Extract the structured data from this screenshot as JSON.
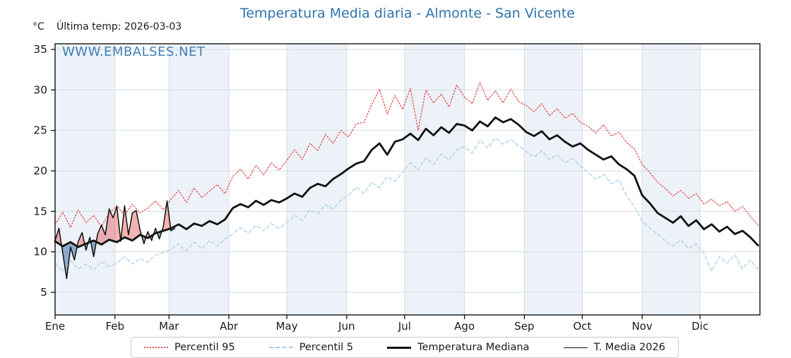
{
  "header": {
    "title": "Temperatura Media diaria - Almonte - San Vicente",
    "unit": "°C",
    "last_temp": "Última temp: 2026-03-03",
    "watermark": "WWW.EMBALSES.NET"
  },
  "chart_data": {
    "type": "line",
    "title": "Temperatura Media diaria - Almonte - San Vicente",
    "xlabel": "",
    "ylabel": "°C",
    "ylim": [
      2.2,
      35.7
    ],
    "yticks": [
      5,
      10,
      15,
      20,
      25,
      30,
      35
    ],
    "x_months": [
      "Ene",
      "Feb",
      "Mar",
      "Abr",
      "May",
      "Jun",
      "Jul",
      "Ago",
      "Sep",
      "Oct",
      "Nov",
      "Dic"
    ],
    "month_start_days": [
      0,
      31,
      59,
      90,
      120,
      151,
      181,
      212,
      243,
      273,
      304,
      334
    ],
    "days_per_year": 365,
    "shaded_month_indices": [
      0,
      2,
      4,
      6,
      8,
      10
    ],
    "grid": true,
    "legend_position": "bottom",
    "colors": {
      "accent_blue": "#2e74ad",
      "p95_red": "#e44c4c",
      "p5_blue": "#a9cfe5",
      "line_black": "#111111",
      "fill_above_median": "rgba(228,76,76,0.42)",
      "fill_below_median": "rgba(62,110,165,0.55)",
      "month_band": "#edf2f9",
      "gridline": "#d4dce4"
    },
    "series": [
      {
        "name": "Percentil 95",
        "style": "dotted",
        "color": "#e44c4c",
        "step_days": 4,
        "values": [
          13.4,
          14.9,
          13.0,
          15.2,
          13.6,
          14.5,
          13.1,
          14.8,
          15.7,
          14.5,
          15.9,
          14.8,
          15.4,
          16.3,
          15.2,
          16.5,
          17.6,
          16.1,
          17.9,
          16.7,
          17.5,
          18.3,
          17.2,
          19.3,
          20.2,
          19.0,
          20.7,
          19.5,
          21.0,
          20.1,
          21.3,
          22.6,
          21.4,
          23.4,
          22.5,
          24.5,
          23.4,
          25.0,
          24.2,
          25.8,
          26.0,
          28.2,
          30.1,
          27.0,
          29.3,
          27.6,
          30.2,
          25.0,
          30.0,
          28.4,
          29.5,
          27.9,
          30.6,
          29.1,
          28.3,
          30.9,
          28.7,
          29.9,
          28.4,
          30.1,
          28.6,
          28.1,
          27.3,
          28.3,
          26.8,
          27.7,
          26.5,
          27.1,
          26.0,
          25.5,
          24.7,
          25.7,
          24.3,
          24.8,
          23.5,
          22.7,
          20.8,
          19.8,
          18.6,
          17.8,
          16.9,
          17.6,
          16.6,
          17.2,
          15.9,
          16.5,
          15.7,
          16.2,
          15.0,
          15.6,
          14.4,
          13.3
        ]
      },
      {
        "name": "Percentil 5",
        "style": "dashed",
        "color": "#a9cfe5",
        "step_days": 4,
        "values": [
          8.6,
          7.6,
          8.9,
          7.9,
          8.5,
          7.8,
          8.8,
          8.2,
          8.6,
          9.4,
          8.5,
          9.2,
          8.7,
          9.6,
          9.9,
          10.3,
          11.0,
          10.1,
          11.2,
          10.4,
          11.4,
          10.7,
          11.6,
          12.2,
          13.0,
          12.3,
          13.3,
          12.6,
          13.5,
          12.9,
          13.6,
          14.5,
          13.9,
          15.2,
          14.7,
          15.8,
          15.3,
          16.4,
          17.0,
          18.0,
          17.2,
          18.6,
          17.9,
          19.3,
          18.7,
          19.8,
          21.0,
          20.1,
          21.6,
          20.8,
          22.1,
          21.3,
          22.6,
          23.0,
          22.2,
          23.8,
          22.8,
          24.1,
          23.3,
          23.9,
          23.1,
          22.4,
          21.7,
          22.5,
          21.4,
          22.0,
          21.0,
          21.5,
          20.6,
          19.8,
          18.9,
          19.6,
          18.4,
          18.9,
          16.9,
          15.6,
          13.8,
          12.9,
          12.2,
          11.4,
          10.7,
          11.5,
          10.4,
          11.0,
          9.8,
          7.6,
          9.4,
          8.6,
          9.6,
          7.9,
          9.0,
          7.8
        ]
      },
      {
        "name": "Temperatura Mediana",
        "style": "solid-thick",
        "color": "#111111",
        "step_days": 4,
        "values": [
          11.3,
          10.7,
          11.2,
          10.6,
          11.0,
          11.4,
          10.9,
          11.5,
          11.2,
          11.8,
          11.4,
          12.1,
          11.7,
          12.3,
          12.6,
          12.9,
          13.4,
          12.8,
          13.5,
          13.2,
          13.8,
          13.4,
          14.0,
          15.4,
          15.9,
          15.5,
          16.3,
          15.8,
          16.4,
          16.1,
          16.6,
          17.2,
          16.8,
          17.9,
          18.4,
          18.1,
          19.0,
          19.6,
          20.3,
          20.9,
          21.2,
          22.6,
          23.4,
          22.0,
          23.6,
          23.9,
          24.6,
          23.8,
          25.2,
          24.4,
          25.4,
          24.7,
          25.8,
          25.6,
          25.0,
          26.1,
          25.5,
          26.6,
          26.0,
          26.4,
          25.7,
          24.8,
          24.3,
          24.9,
          23.9,
          24.4,
          23.6,
          23.0,
          23.4,
          22.6,
          22.0,
          21.4,
          21.8,
          20.8,
          20.2,
          19.4,
          17.0,
          16.0,
          14.8,
          14.2,
          13.6,
          14.4,
          13.2,
          13.9,
          12.8,
          13.4,
          12.5,
          13.1,
          12.2,
          12.6,
          11.8,
          10.8
        ]
      },
      {
        "name": "T. Media 2026",
        "style": "solid-thin",
        "color": "#111111",
        "step_days": 2,
        "values": [
          11.4,
          12.9,
          9.8,
          6.7,
          10.6,
          9.0,
          11.3,
          12.4,
          10.2,
          11.8,
          9.4,
          12.2,
          13.3,
          12.1,
          15.3,
          14.2,
          15.6,
          11.3,
          15.7,
          12.1,
          14.8,
          15.1,
          12.7,
          11.0,
          12.5,
          11.4,
          12.9,
          11.6,
          13.1,
          16.3,
          12.6,
          12.9
        ]
      }
    ],
    "fill_between": {
      "upper_series": "T. Media 2026",
      "reference_series": "Temperatura Mediana",
      "above_color": "rgba(228,76,76,0.42)",
      "below_color": "rgba(62,110,165,0.55)"
    }
  }
}
